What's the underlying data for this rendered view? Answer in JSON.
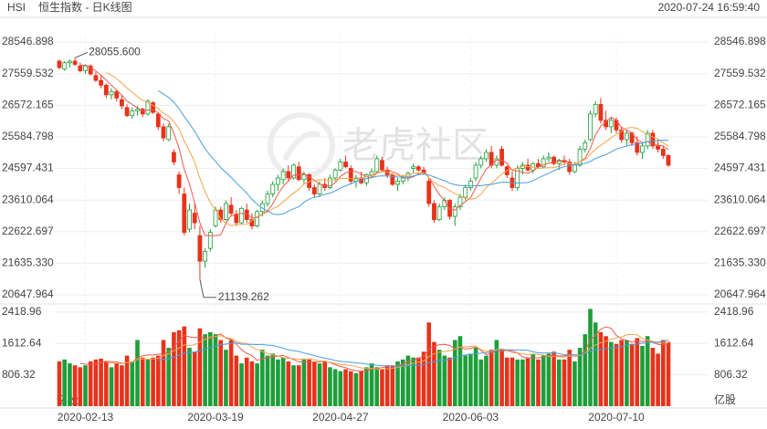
{
  "header": {
    "symbol": "HSI",
    "name": "恒生指数 - 日K线图",
    "timestamp": "2020-07-24 16:59:40"
  },
  "watermark": "老虎社区",
  "chart_data": {
    "type": "candlestick",
    "categories": [
      null,
      null,
      null,
      null,
      null,
      "2020-02-13",
      null,
      null,
      null,
      null,
      null,
      null,
      null,
      null,
      null,
      null,
      null,
      null,
      null,
      null,
      null,
      null,
      null,
      null,
      null,
      null,
      null,
      null,
      null,
      null,
      "2020-03-19",
      null,
      null,
      null,
      null,
      null,
      null,
      null,
      null,
      null,
      null,
      null,
      null,
      null,
      null,
      null,
      null,
      null,
      null,
      null,
      null,
      null,
      null,
      null,
      "2020-04-27",
      null,
      null,
      null,
      null,
      null,
      null,
      null,
      null,
      null,
      null,
      null,
      null,
      null,
      null,
      null,
      null,
      null,
      null,
      null,
      null,
      null,
      null,
      null,
      null,
      "2020-06-03",
      null,
      null,
      null,
      null,
      null,
      null,
      null,
      null,
      null,
      null,
      null,
      null,
      null,
      null,
      null,
      null,
      null,
      null,
      null,
      null,
      null,
      null,
      null,
      null,
      null,
      null,
      null,
      "2020-07-10",
      null,
      null,
      null,
      null,
      null,
      null,
      null,
      null,
      null,
      null
    ],
    "ohlc": [
      [
        27950,
        28000,
        27700,
        27750
      ],
      [
        27700,
        27950,
        27650,
        27900
      ],
      [
        27900,
        28000,
        27750,
        27950
      ],
      [
        27950,
        28055.6,
        27800,
        27850
      ],
      [
        27800,
        27900,
        27600,
        27650
      ],
      [
        27650,
        27850,
        27550,
        27800
      ],
      [
        27800,
        27850,
        27500,
        27550
      ],
      [
        27500,
        27600,
        27300,
        27350
      ],
      [
        27350,
        27500,
        27100,
        27200
      ],
      [
        27200,
        27250,
        26800,
        26900
      ],
      [
        26900,
        27100,
        26750,
        27000
      ],
      [
        27000,
        27050,
        26700,
        26800
      ],
      [
        26750,
        26900,
        26450,
        26550
      ],
      [
        26500,
        26600,
        26200,
        26250
      ],
      [
        26250,
        26500,
        26150,
        26400
      ],
      [
        26400,
        26550,
        26250,
        26450
      ],
      [
        26450,
        26500,
        26200,
        26300
      ],
      [
        26300,
        26750,
        26250,
        26700
      ],
      [
        26650,
        26700,
        26300,
        26350
      ],
      [
        26300,
        26350,
        25800,
        25900
      ],
      [
        25900,
        26000,
        25450,
        25550
      ],
      [
        25500,
        26000,
        25450,
        25900
      ],
      [
        25100,
        25200,
        24700,
        24800
      ],
      [
        24400,
        24500,
        23800,
        24000
      ],
      [
        23800,
        24000,
        22500,
        22600
      ],
      [
        22700,
        23500,
        22600,
        23300
      ],
      [
        23200,
        23500,
        22700,
        22900
      ],
      [
        22500,
        22800,
        21139.262,
        21700
      ],
      [
        21700,
        22100,
        21500,
        22000
      ],
      [
        22100,
        22700,
        22000,
        22600
      ],
      [
        22800,
        23400,
        22750,
        23300
      ],
      [
        23300,
        23400,
        22900,
        23000
      ],
      [
        23000,
        23600,
        22950,
        23500
      ],
      [
        23450,
        23700,
        23100,
        23200
      ],
      [
        23150,
        23300,
        22800,
        22900
      ],
      [
        22900,
        23400,
        22850,
        23350
      ],
      [
        23300,
        23500,
        22900,
        23000
      ],
      [
        23000,
        23200,
        22700,
        22800
      ],
      [
        22800,
        23300,
        22750,
        23250
      ],
      [
        23250,
        23600,
        23100,
        23500
      ],
      [
        23500,
        23900,
        23400,
        23800
      ],
      [
        23800,
        24200,
        23700,
        24100
      ],
      [
        24100,
        24400,
        23900,
        24300
      ],
      [
        24250,
        24600,
        24100,
        24500
      ],
      [
        24500,
        24700,
        24200,
        24300
      ],
      [
        24300,
        24750,
        24250,
        24700
      ],
      [
        24650,
        24800,
        24200,
        24250
      ],
      [
        24250,
        24500,
        24100,
        24400
      ],
      [
        24400,
        24450,
        23900,
        24000
      ],
      [
        24000,
        24100,
        23700,
        23800
      ],
      [
        23800,
        24200,
        23700,
        24100
      ],
      [
        24100,
        24300,
        23900,
        24000
      ],
      [
        24000,
        24400,
        23950,
        24300
      ],
      [
        24300,
        24600,
        24200,
        24550
      ],
      [
        24550,
        24900,
        24500,
        24800
      ],
      [
        24800,
        25000,
        24600,
        24650
      ],
      [
        24600,
        24700,
        24100,
        24200
      ],
      [
        24200,
        24400,
        24000,
        24300
      ],
      [
        24300,
        24500,
        24100,
        24150
      ],
      [
        24150,
        24450,
        24050,
        24400
      ],
      [
        24400,
        24600,
        24300,
        24500
      ],
      [
        24500,
        25000,
        24450,
        24900
      ],
      [
        24850,
        24950,
        24500,
        24550
      ],
      [
        24550,
        24650,
        24300,
        24400
      ],
      [
        24400,
        24450,
        24050,
        24100
      ],
      [
        24100,
        24300,
        23900,
        24200
      ],
      [
        24200,
        24400,
        24100,
        24300
      ],
      [
        24300,
        24500,
        24200,
        24450
      ],
      [
        24600,
        24750,
        24450,
        24650
      ],
      [
        24650,
        24700,
        24500,
        24550
      ],
      [
        24550,
        24650,
        24400,
        24450
      ],
      [
        24200,
        24300,
        23400,
        23500
      ],
      [
        23500,
        23600,
        22900,
        23000
      ],
      [
        23000,
        23500,
        22950,
        23400
      ],
      [
        23400,
        23700,
        23300,
        23600
      ],
      [
        23600,
        23650,
        23000,
        23100
      ],
      [
        23100,
        23500,
        22800,
        23400
      ],
      [
        23400,
        23800,
        23300,
        23700
      ],
      [
        23700,
        24100,
        23600,
        24000
      ],
      [
        24000,
        24300,
        23900,
        24200
      ],
      [
        24300,
        24800,
        24200,
        24700
      ],
      [
        24700,
        25000,
        24600,
        24900
      ],
      [
        24900,
        25200,
        24800,
        25100
      ],
      [
        25100,
        25300,
        24600,
        24700
      ],
      [
        24700,
        25000,
        24600,
        24900
      ],
      [
        25200,
        25300,
        24650,
        24700
      ],
      [
        24650,
        24700,
        24300,
        24400
      ],
      [
        24300,
        24500,
        23900,
        24000
      ],
      [
        24000,
        24700,
        23900,
        24600
      ],
      [
        24600,
        24800,
        24400,
        24700
      ],
      [
        24700,
        24900,
        24500,
        24550
      ],
      [
        24550,
        24800,
        24450,
        24750
      ],
      [
        24750,
        24900,
        24600,
        24650
      ],
      [
        24650,
        25000,
        24600,
        24900
      ],
      [
        24900,
        25100,
        24800,
        24950
      ],
      [
        24950,
        25000,
        24700,
        24750
      ],
      [
        24750,
        24900,
        24550,
        24850
      ],
      [
        24850,
        25000,
        24700,
        24800
      ],
      [
        24800,
        24900,
        24400,
        24500
      ],
      [
        24500,
        24800,
        24450,
        24700
      ],
      [
        24700,
        25300,
        24650,
        25200
      ],
      [
        25200,
        25500,
        25100,
        25400
      ],
      [
        25500,
        26400,
        25450,
        26300
      ],
      [
        26300,
        26700,
        26200,
        26600
      ],
      [
        26600,
        26800,
        26000,
        26100
      ],
      [
        26100,
        26400,
        25800,
        25900
      ],
      [
        25900,
        26200,
        25700,
        26100
      ],
      [
        26100,
        26200,
        25700,
        25800
      ],
      [
        25800,
        25900,
        25400,
        25500
      ],
      [
        25500,
        25800,
        25300,
        25700
      ],
      [
        25700,
        25750,
        25300,
        25400
      ],
      [
        25400,
        25600,
        25000,
        25100
      ],
      [
        25100,
        25400,
        24900,
        25300
      ],
      [
        25300,
        25800,
        25200,
        25700
      ],
      [
        25700,
        25800,
        25200,
        25300
      ],
      [
        25300,
        25500,
        25100,
        25200
      ],
      [
        25200,
        25300,
        24900,
        25000
      ],
      [
        25000,
        25050,
        24650,
        24700
      ]
    ],
    "volume": [
      1150,
      1200,
      1100,
      1050,
      1000,
      1050,
      1150,
      1200,
      1220,
      1150,
      1000,
      1100,
      1050,
      1300,
      1150,
      1700,
      1250,
      1200,
      1250,
      1300,
      1700,
      1500,
      1900,
      1950,
      2050,
      1500,
      1400,
      2000,
      1850,
      1900,
      1850,
      1700,
      1450,
      1700,
      1300,
      1100,
      1250,
      1150,
      1100,
      1450,
      1300,
      1350,
      1200,
      1250,
      1150,
      1050,
      1050,
      1200,
      1200,
      1150,
      1100,
      1150,
      1000,
      950,
      900,
      950,
      900,
      850,
      900,
      1000,
      1100,
      1000,
      950,
      1050,
      1050,
      1150,
      1200,
      1300,
      1250,
      1250,
      1400,
      2150,
      1650,
      1450,
      1300,
      1250,
      1700,
      1800,
      1300,
      1350,
      1500,
      1200,
      1300,
      1450,
      1700,
      1450,
      1250,
      1250,
      1200,
      1200,
      1250,
      1350,
      1200,
      1300,
      1350,
      1400,
      1200,
      1200,
      1450,
      1150,
      1500,
      1850,
      2500,
      2150,
      1900,
      1800,
      1650,
      1600,
      1700,
      1700,
      1600,
      1750,
      1550,
      1800,
      1500,
      1350,
      1700,
      1650
    ],
    "up_color": "#1e9e3a",
    "down_color": "#e8321b",
    "ylim": [
      20450,
      28720
    ],
    "yticks": [
      28546.898,
      27559.532,
      26572.165,
      25584.798,
      24597.431,
      23610.064,
      22622.697,
      {
        "value": 21635.33,
        "label": "21635.330"
      },
      20647.964
    ],
    "volume_ylim": [
      0,
      2580
    ],
    "volume_yticks": [
      2418.96,
      1612.64,
      806.32
    ],
    "volume_unit": "亿股",
    "annotations": [
      {
        "index": 3,
        "value": 28055.6,
        "label": "28055.600"
      },
      {
        "index": 27,
        "value": 21139.262
      }
    ],
    "moving_averages": [
      {
        "period": 5,
        "color": "#ef5a4c"
      },
      {
        "period": 10,
        "color": "#f3a54b"
      },
      {
        "period": 20,
        "color": "#4a9ee0"
      }
    ],
    "grid": true
  }
}
